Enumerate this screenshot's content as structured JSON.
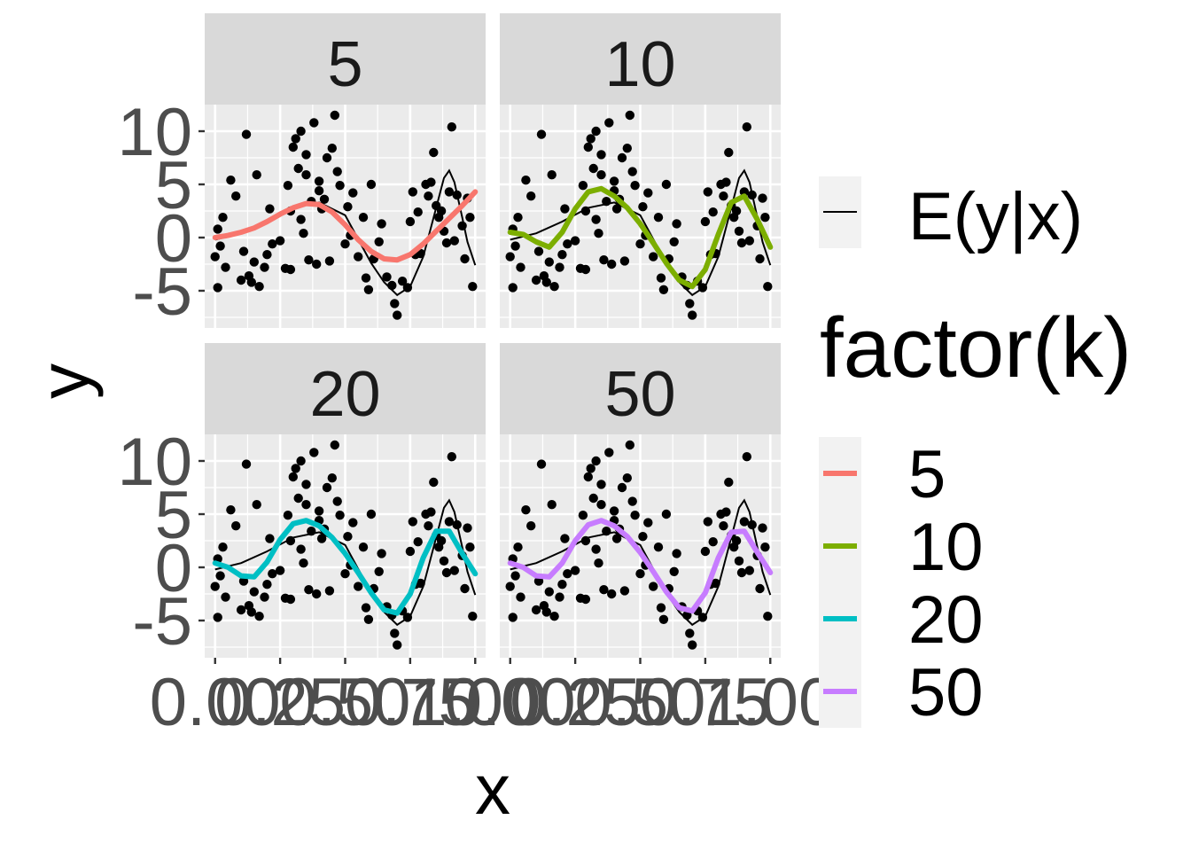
{
  "chart_data": {
    "type": "scatter",
    "title": "",
    "xlabel": "x",
    "ylabel": "y",
    "xlim": [
      -0.04,
      1.04
    ],
    "ylim": [
      -8.5,
      12.5
    ],
    "x_ticks": [
      0.0,
      0.25,
      0.5,
      0.75,
      1.0
    ],
    "x_tick_labels": [
      "0.00",
      "0.25",
      "0.50",
      "0.75",
      "1.00"
    ],
    "y_ticks": [
      -5,
      0,
      5,
      10
    ],
    "y_tick_labels": [
      "-5",
      "0",
      "5",
      "10"
    ],
    "grid": true,
    "legend_position": "right",
    "facets": [
      "5",
      "10",
      "20",
      "50"
    ],
    "points": {
      "x": [
        0.0,
        0.01,
        0.01,
        0.02,
        0.03,
        0.04,
        0.06,
        0.08,
        0.1,
        0.11,
        0.12,
        0.13,
        0.14,
        0.15,
        0.16,
        0.17,
        0.19,
        0.2,
        0.21,
        0.22,
        0.25,
        0.27,
        0.28,
        0.29,
        0.29,
        0.3,
        0.31,
        0.32,
        0.33,
        0.33,
        0.34,
        0.35,
        0.35,
        0.36,
        0.37,
        0.38,
        0.39,
        0.4,
        0.4,
        0.41,
        0.42,
        0.43,
        0.44,
        0.45,
        0.46,
        0.47,
        0.48,
        0.5,
        0.51,
        0.52,
        0.53,
        0.55,
        0.57,
        0.58,
        0.59,
        0.6,
        0.61,
        0.63,
        0.64,
        0.66,
        0.68,
        0.69,
        0.7,
        0.72,
        0.74,
        0.75,
        0.76,
        0.77,
        0.78,
        0.79,
        0.81,
        0.82,
        0.83,
        0.84,
        0.85,
        0.86,
        0.87,
        0.88,
        0.89,
        0.9,
        0.91,
        0.92,
        0.93,
        0.95,
        0.96,
        0.97,
        0.98,
        0.99
      ],
      "y": [
        -1.8,
        -4.7,
        0.8,
        -0.8,
        1.9,
        -2.8,
        5.4,
        3.9,
        -4.0,
        -1.3,
        9.7,
        -3.6,
        -4.2,
        -2.3,
        5.9,
        -4.6,
        -2.8,
        -1.6,
        2.7,
        -0.6,
        -0.3,
        -2.9,
        4.9,
        -3.0,
        2.5,
        8.5,
        9.3,
        6.5,
        1.7,
        10.0,
        0.4,
        5.9,
        7.8,
        -2.1,
        3.4,
        10.8,
        -2.5,
        4.4,
        5.3,
        2.7,
        3.6,
        7.5,
        -2.2,
        8.4,
        11.5,
        6.2,
        4.9,
        -0.6,
        2.9,
        0.2,
        4.2,
        -1.8,
        1.9,
        -3.8,
        -4.9,
        5.0,
        -2.0,
        -0.4,
        1.3,
        -3.7,
        -4.5,
        -6.2,
        -7.3,
        -4.1,
        -4.7,
        1.5,
        4.3,
        -1.6,
        2.4,
        -1.5,
        5.0,
        3.9,
        5.2,
        8.0,
        3.0,
        1.9,
        2.5,
        0.6,
        -0.5,
        4.3,
        10.4,
        -0.3,
        4.0,
        1.1,
        -2.0,
        3.7,
        1.9,
        -4.6
      ]
    },
    "true_mean": {
      "name": "E(y|x)",
      "color": "#000000",
      "x": [
        0.0,
        0.1,
        0.2,
        0.3,
        0.4,
        0.5,
        0.6,
        0.65,
        0.7,
        0.75,
        0.8,
        0.85,
        0.88,
        0.9,
        0.92,
        0.95,
        0.97,
        1.0
      ],
      "y": [
        -0.2,
        0.4,
        1.5,
        2.8,
        3.3,
        2.1,
        -2.4,
        -4.2,
        -5.4,
        -4.6,
        -1.8,
        2.8,
        5.6,
        6.3,
        5.2,
        1.9,
        -0.4,
        -2.6
      ]
    },
    "series": [
      {
        "name": "5",
        "color": "#F8766D",
        "x": [
          0.0,
          0.05,
          0.1,
          0.15,
          0.2,
          0.25,
          0.3,
          0.35,
          0.4,
          0.45,
          0.5,
          0.55,
          0.6,
          0.65,
          0.7,
          0.75,
          0.8,
          0.85,
          0.9,
          0.95,
          1.0
        ],
        "y": [
          0.0,
          0.2,
          0.5,
          0.9,
          1.5,
          2.2,
          2.8,
          3.2,
          3.1,
          2.4,
          1.2,
          -0.2,
          -1.3,
          -2.0,
          -2.1,
          -1.6,
          -0.6,
          0.6,
          1.8,
          3.0,
          4.3
        ]
      },
      {
        "name": "10",
        "color": "#7CAE00",
        "x": [
          0.0,
          0.05,
          0.1,
          0.15,
          0.2,
          0.25,
          0.3,
          0.35,
          0.4,
          0.45,
          0.5,
          0.55,
          0.6,
          0.65,
          0.7,
          0.75,
          0.8,
          0.85,
          0.9,
          0.95,
          1.0
        ],
        "y": [
          0.5,
          0.3,
          -0.4,
          -0.9,
          0.5,
          2.7,
          4.3,
          4.6,
          3.9,
          2.8,
          1.3,
          -0.5,
          -2.4,
          -4.0,
          -4.6,
          -3.0,
          0.3,
          3.3,
          3.9,
          1.7,
          -0.9
        ]
      },
      {
        "name": "20",
        "color": "#00BFC4",
        "x": [
          0.0,
          0.05,
          0.1,
          0.15,
          0.2,
          0.25,
          0.3,
          0.35,
          0.4,
          0.45,
          0.5,
          0.55,
          0.6,
          0.65,
          0.7,
          0.75,
          0.8,
          0.85,
          0.9,
          0.95,
          1.0
        ],
        "y": [
          0.4,
          0.0,
          -0.8,
          -0.9,
          0.5,
          2.6,
          4.1,
          4.4,
          3.9,
          2.8,
          1.3,
          -0.5,
          -2.4,
          -4.0,
          -4.3,
          -2.5,
          0.9,
          3.4,
          3.4,
          1.3,
          -0.6
        ]
      },
      {
        "name": "50",
        "color": "#C77CFF",
        "x": [
          0.0,
          0.05,
          0.1,
          0.15,
          0.2,
          0.25,
          0.3,
          0.35,
          0.4,
          0.45,
          0.5,
          0.55,
          0.6,
          0.65,
          0.7,
          0.75,
          0.8,
          0.85,
          0.9,
          0.95,
          1.0
        ],
        "y": [
          0.4,
          0.0,
          -0.8,
          -0.9,
          0.4,
          2.5,
          4.0,
          4.4,
          3.9,
          2.9,
          1.4,
          -0.4,
          -2.3,
          -3.8,
          -4.1,
          -2.4,
          0.9,
          3.3,
          3.4,
          1.4,
          -0.5
        ]
      }
    ],
    "legend": {
      "line_label": "E(y|x)",
      "title": "factor(k)",
      "items": [
        "5",
        "10",
        "20",
        "50"
      ]
    }
  }
}
